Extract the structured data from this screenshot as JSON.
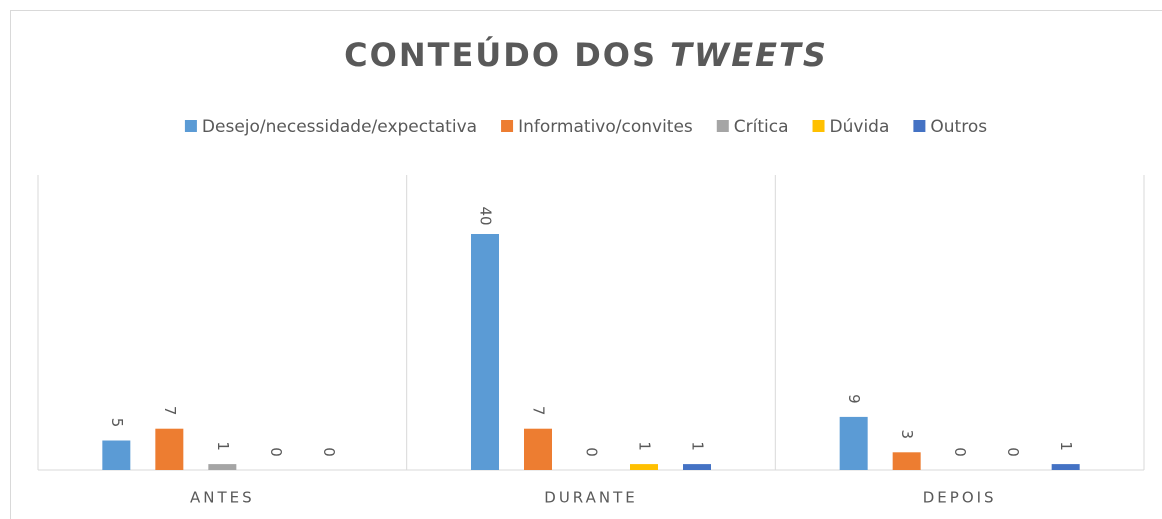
{
  "chart_data": {
    "type": "bar",
    "title": "CONTEÚDO DOS TWEETS",
    "categories": [
      "ANTES",
      "DURANTE",
      "DEPOIS"
    ],
    "series": [
      {
        "name": "Desejo/necessidade/expectativa",
        "color": "#5b9bd5",
        "values": [
          5,
          40,
          9
        ]
      },
      {
        "name": "Informativo/convites",
        "color": "#ed7d31",
        "values": [
          7,
          7,
          3
        ]
      },
      {
        "name": "Crítica",
        "color": "#a5a5a5",
        "values": [
          1,
          0,
          0
        ]
      },
      {
        "name": "Dúvida",
        "color": "#ffc000",
        "values": [
          0,
          1,
          0
        ]
      },
      {
        "name": "Outros",
        "color": "#4472c4",
        "values": [
          0,
          1,
          1
        ]
      }
    ],
    "ylim": [
      0,
      50
    ],
    "legend": "top"
  }
}
